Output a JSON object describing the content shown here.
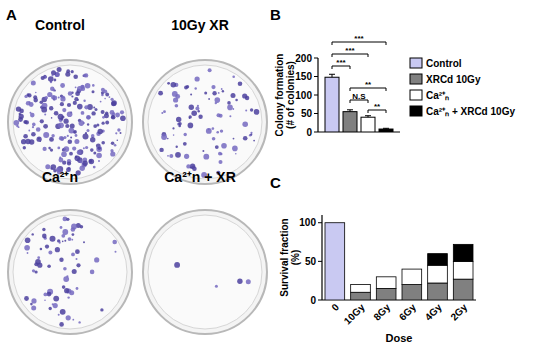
{
  "images": {
    "title": "A",
    "dishes": [
      "Control",
      "10Gy XR",
      "Ca²⁺n",
      "Ca²⁺n + XR"
    ]
  },
  "chart_data": [
    {
      "type": "bar",
      "title": "B",
      "ylabel": "Colony formation\n(# of colonies)",
      "categories": [
        null
      ],
      "series": [
        {
          "name": "Control",
          "color": "#c9c9f2",
          "values": [
            148
          ],
          "errors": [
            8
          ]
        },
        {
          "name": "XRCd 10Gy",
          "color": "#808080",
          "values": [
            55
          ],
          "errors": [
            5
          ]
        },
        {
          "name": "Ca²⁺ₙ",
          "color": "#ffffff",
          "values": [
            40
          ],
          "errors": [
            4
          ]
        },
        {
          "name": "Ca²⁺ₙ + XRCd 10Gy",
          "color": "#000000",
          "values": [
            8
          ],
          "errors": [
            2
          ]
        }
      ],
      "ylim": [
        0,
        200
      ],
      "yticks": [
        0,
        50,
        100,
        150,
        200
      ],
      "legend": "right",
      "annotations": [
        {
          "text": "***",
          "from": 0,
          "to": 1
        },
        {
          "text": "***",
          "from": 0,
          "to": 2
        },
        {
          "text": "***",
          "from": 0,
          "to": 3
        },
        {
          "text": "N.S",
          "from": 1,
          "to": 2
        },
        {
          "text": "**",
          "from": 1,
          "to": 3
        },
        {
          "text": "**",
          "from": 2,
          "to": 3
        }
      ]
    },
    {
      "type": "bar",
      "stacked": true,
      "title": "C",
      "ylabel": "Survival fraction\n(%)",
      "xlabel": "Dose",
      "categories": [
        "0",
        "10Gy",
        "8Gy",
        "6Gy",
        "4Gy",
        "2Gy"
      ],
      "series": [
        {
          "name": "Control",
          "color": "#c9c9f2",
          "values": [
            100,
            null,
            null,
            null,
            null,
            null
          ]
        },
        {
          "name": "XRCd 10Gy",
          "color": "#808080",
          "values": [
            null,
            10,
            15,
            20,
            22,
            27
          ]
        },
        {
          "name": "Ca²⁺ₙ",
          "color": "#ffffff",
          "values": [
            null,
            10,
            15,
            20,
            23,
            23
          ]
        },
        {
          "name": "Ca²⁺ₙ + XRCd 10Gy",
          "color": "#000000",
          "values": [
            null,
            0,
            0,
            0,
            15,
            22
          ]
        }
      ],
      "ylim": [
        0,
        110
      ],
      "yticks": [
        0,
        50,
        100
      ]
    }
  ]
}
